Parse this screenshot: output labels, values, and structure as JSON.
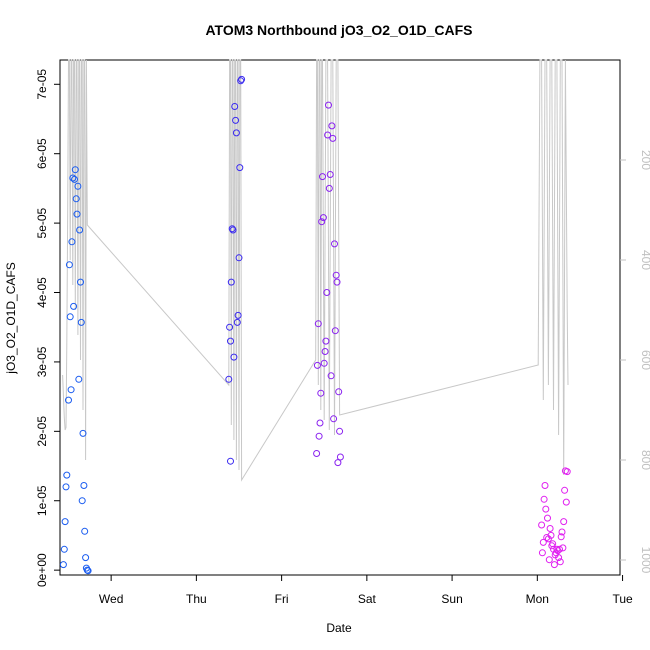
{
  "chart_data": {
    "type": "scatter",
    "title": "ATOM3 Northbound jO3_O2_O1D_CAFS",
    "xlabel": "Date",
    "ylabel": "jO3_O2_O1D_CAFS",
    "x_unit": "days",
    "xlim": [
      -0.6,
      5.97
    ],
    "ylim": [
      -7e-07,
      7.35e-05
    ],
    "y_ticks": [
      "0e+00",
      "1e-05",
      "2e-05",
      "3e-05",
      "4e-05",
      "5e-05",
      "6e-05",
      "7e-05"
    ],
    "y_tick_values": [
      0,
      1e-05,
      2e-05,
      3e-05,
      4e-05,
      5e-05,
      6e-05,
      7e-05
    ],
    "x_ticks": [
      {
        "label": "Wed",
        "value": 0
      },
      {
        "label": "Thu",
        "value": 1
      },
      {
        "label": "Fri",
        "value": 2
      },
      {
        "label": "Sat",
        "value": 3
      },
      {
        "label": "Sun",
        "value": 4
      },
      {
        "label": "Mon",
        "value": 5
      },
      {
        "label": "Tue",
        "value": 6
      }
    ],
    "y2_axis": {
      "reversed": true,
      "lim": [
        0,
        1030
      ],
      "ticks": [
        200,
        400,
        600,
        800,
        1000
      ],
      "color": "#c0c0c0"
    },
    "grid": false,
    "legend": "none",
    "colors": {
      "day1": "#1a5cf0",
      "day2": "#3a2af0",
      "day3": "#8a22f0",
      "day4": "#e020f0",
      "altitude_line": "#c8c8c8",
      "axis": "#000000"
    },
    "series": [
      {
        "color_key": "day1",
        "points": [
          [
            -0.56,
            8e-07
          ],
          [
            -0.55,
            3e-06
          ],
          [
            -0.54,
            7e-06
          ],
          [
            -0.53,
            1.2e-05
          ],
          [
            -0.52,
            1.37e-05
          ],
          [
            -0.5,
            2.45e-05
          ],
          [
            -0.49,
            4.4e-05
          ],
          [
            -0.48,
            3.65e-05
          ],
          [
            -0.47,
            2.6e-05
          ],
          [
            -0.46,
            4.73e-05
          ],
          [
            -0.45,
            5.65e-05
          ],
          [
            -0.44,
            3.8e-05
          ],
          [
            -0.43,
            5.63e-05
          ],
          [
            -0.42,
            5.77e-05
          ],
          [
            -0.41,
            5.35e-05
          ],
          [
            -0.4,
            5.13e-05
          ],
          [
            -0.39,
            5.53e-05
          ],
          [
            -0.38,
            2.75e-05
          ],
          [
            -0.37,
            4.9e-05
          ],
          [
            -0.36,
            4.15e-05
          ],
          [
            -0.35,
            3.57e-05
          ],
          [
            -0.34,
            1e-05
          ],
          [
            -0.33,
            1.97e-05
          ],
          [
            -0.32,
            1.22e-05
          ],
          [
            -0.31,
            5.6e-06
          ],
          [
            -0.3,
            1.8e-06
          ],
          [
            -0.29,
            3e-07
          ],
          [
            -0.28,
            0.0
          ],
          [
            -0.27,
            -1e-07
          ]
        ]
      },
      {
        "color_key": "day2",
        "points": [
          [
            1.38,
            2.75e-05
          ],
          [
            1.39,
            3.5e-05
          ],
          [
            1.4,
            3.3e-05
          ],
          [
            1.4,
            1.57e-05
          ],
          [
            1.41,
            4.15e-05
          ],
          [
            1.42,
            4.92e-05
          ],
          [
            1.43,
            4.9e-05
          ],
          [
            1.44,
            3.07e-05
          ],
          [
            1.45,
            6.68e-05
          ],
          [
            1.46,
            6.48e-05
          ],
          [
            1.47,
            6.3e-05
          ],
          [
            1.48,
            3.57e-05
          ],
          [
            1.49,
            3.67e-05
          ],
          [
            1.5,
            4.5e-05
          ],
          [
            1.51,
            5.8e-05
          ],
          [
            1.52,
            7.05e-05
          ],
          [
            1.53,
            7.07e-05
          ]
        ]
      },
      {
        "color_key": "day3",
        "points": [
          [
            2.41,
            1.68e-05
          ],
          [
            2.42,
            2.95e-05
          ],
          [
            2.43,
            3.55e-05
          ],
          [
            2.44,
            1.93e-05
          ],
          [
            2.45,
            2.12e-05
          ],
          [
            2.46,
            2.55e-05
          ],
          [
            2.47,
            5.02e-05
          ],
          [
            2.48,
            5.67e-05
          ],
          [
            2.49,
            5.08e-05
          ],
          [
            2.5,
            2.98e-05
          ],
          [
            2.51,
            3.15e-05
          ],
          [
            2.52,
            3.3e-05
          ],
          [
            2.53,
            4e-05
          ],
          [
            2.54,
            6.27e-05
          ],
          [
            2.55,
            6.7e-05
          ],
          [
            2.56,
            5.5e-05
          ],
          [
            2.57,
            5.7e-05
          ],
          [
            2.58,
            2.8e-05
          ],
          [
            2.59,
            6.4e-05
          ],
          [
            2.6,
            6.22e-05
          ],
          [
            2.61,
            2.18e-05
          ],
          [
            2.62,
            4.7e-05
          ],
          [
            2.63,
            3.45e-05
          ],
          [
            2.64,
            4.25e-05
          ],
          [
            2.65,
            4.15e-05
          ],
          [
            2.66,
            1.55e-05
          ],
          [
            2.67,
            2.57e-05
          ],
          [
            2.68,
            2e-05
          ],
          [
            2.69,
            1.63e-05
          ]
        ]
      },
      {
        "color_key": "day4",
        "points": [
          [
            5.05,
            6.5e-06
          ],
          [
            5.06,
            2.5e-06
          ],
          [
            5.07,
            4e-06
          ],
          [
            5.08,
            1.02e-05
          ],
          [
            5.09,
            1.22e-05
          ],
          [
            5.1,
            8.8e-06
          ],
          [
            5.11,
            4.7e-06
          ],
          [
            5.12,
            7.5e-06
          ],
          [
            5.13,
            4.5e-06
          ],
          [
            5.14,
            1.5e-06
          ],
          [
            5.15,
            6e-06
          ],
          [
            5.16,
            5e-06
          ],
          [
            5.17,
            3.5e-06
          ],
          [
            5.18,
            3.8e-06
          ],
          [
            5.19,
            3e-06
          ],
          [
            5.2,
            8e-07
          ],
          [
            5.21,
            2.2e-06
          ],
          [
            5.22,
            2.5e-06
          ],
          [
            5.23,
            3e-06
          ],
          [
            5.24,
            2.8e-06
          ],
          [
            5.25,
            1.8e-06
          ],
          [
            5.26,
            3e-06
          ],
          [
            5.27,
            1.2e-06
          ],
          [
            5.28,
            4.8e-06
          ],
          [
            5.29,
            5.5e-06
          ],
          [
            5.3,
            3.2e-06
          ],
          [
            5.31,
            7e-06
          ],
          [
            5.32,
            1.15e-05
          ],
          [
            5.33,
            1.43e-05
          ],
          [
            5.34,
            9.8e-06
          ],
          [
            5.35,
            1.42e-05
          ]
        ]
      }
    ],
    "altitude_line": {
      "description": "secondary series on right reversed axis",
      "points": [
        [
          -0.57,
          630
        ],
        [
          -0.55,
          715
        ],
        [
          -0.54,
          740
        ],
        [
          -0.53,
          735
        ],
        [
          -0.52,
          570
        ],
        [
          -0.51,
          300
        ],
        [
          -0.5,
          0
        ],
        [
          -0.49,
          0
        ],
        [
          -0.48,
          400
        ],
        [
          -0.47,
          0
        ],
        [
          -0.46,
          0
        ],
        [
          -0.45,
          450
        ],
        [
          -0.44,
          0
        ],
        [
          -0.43,
          0
        ],
        [
          -0.42,
          500
        ],
        [
          -0.41,
          0
        ],
        [
          -0.4,
          0
        ],
        [
          -0.39,
          550
        ],
        [
          -0.38,
          0
        ],
        [
          -0.37,
          0
        ],
        [
          -0.36,
          600
        ],
        [
          -0.35,
          0
        ],
        [
          -0.34,
          0
        ],
        [
          -0.33,
          700
        ],
        [
          -0.32,
          0
        ],
        [
          -0.31,
          0
        ],
        [
          -0.3,
          800
        ],
        [
          -0.29,
          0
        ],
        [
          -0.28,
          330
        ],
        [
          1.38,
          650
        ],
        [
          1.39,
          0
        ],
        [
          1.4,
          0
        ],
        [
          1.41,
          730
        ],
        [
          1.42,
          0
        ],
        [
          1.43,
          0
        ],
        [
          1.44,
          760
        ],
        [
          1.45,
          0
        ],
        [
          1.46,
          0
        ],
        [
          1.47,
          800
        ],
        [
          1.48,
          0
        ],
        [
          1.49,
          0
        ],
        [
          1.5,
          820
        ],
        [
          1.51,
          0
        ],
        [
          1.52,
          0
        ],
        [
          1.53,
          840
        ],
        [
          2.4,
          600
        ],
        [
          2.41,
          0
        ],
        [
          2.42,
          0
        ],
        [
          2.43,
          650
        ],
        [
          2.44,
          0
        ],
        [
          2.45,
          0
        ],
        [
          2.46,
          700
        ],
        [
          2.47,
          0
        ],
        [
          2.48,
          0
        ],
        [
          2.5,
          720
        ],
        [
          2.52,
          0
        ],
        [
          2.54,
          0
        ],
        [
          2.56,
          740
        ],
        [
          2.58,
          0
        ],
        [
          2.6,
          0
        ],
        [
          2.62,
          750
        ],
        [
          2.64,
          0
        ],
        [
          2.66,
          0
        ],
        [
          2.68,
          710
        ],
        [
          5.01,
          610
        ],
        [
          5.03,
          0
        ],
        [
          5.05,
          0
        ],
        [
          5.07,
          680
        ],
        [
          5.09,
          0
        ],
        [
          5.11,
          0
        ],
        [
          5.13,
          650
        ],
        [
          5.15,
          0
        ],
        [
          5.17,
          0
        ],
        [
          5.19,
          700
        ],
        [
          5.21,
          0
        ],
        [
          5.23,
          0
        ],
        [
          5.25,
          750
        ],
        [
          5.27,
          0
        ],
        [
          5.29,
          0
        ],
        [
          5.31,
          830
        ],
        [
          5.33,
          0
        ],
        [
          5.35,
          500
        ],
        [
          5.36,
          650
        ]
      ]
    }
  }
}
